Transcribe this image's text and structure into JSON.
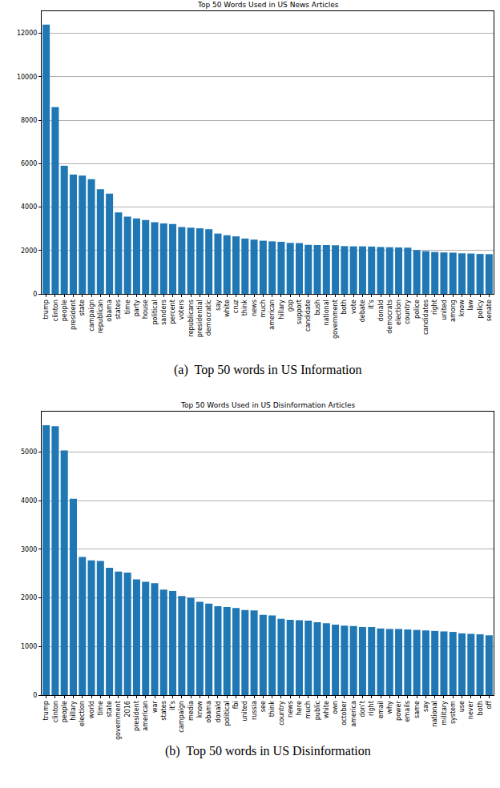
{
  "chart_data": [
    {
      "type": "bar",
      "title": "Top 50 Words Used in US News Articles",
      "caption": "(a)  Top 50 words in US Information",
      "categories": [
        "trump",
        "clinton",
        "people",
        "president",
        "state",
        "campaign",
        "republican",
        "obama",
        "states",
        "time",
        "party",
        "house",
        "political",
        "sanders",
        "percent",
        "voters",
        "republicans",
        "presidential",
        "democratic",
        "say",
        "white",
        "cruz",
        "think",
        "news",
        "much",
        "american",
        "hillary",
        "gop",
        "support",
        "candidate",
        "bush",
        "national",
        "government",
        "both",
        "vote",
        "debate",
        "it's",
        "donald",
        "democrats",
        "election",
        "country",
        "police",
        "candidates",
        "right",
        "united",
        "among",
        "know",
        "law",
        "policy",
        "senate"
      ],
      "values": [
        12400,
        8600,
        5900,
        5500,
        5450,
        5280,
        4820,
        4620,
        3750,
        3560,
        3480,
        3400,
        3300,
        3250,
        3220,
        3080,
        3050,
        3020,
        2980,
        2780,
        2700,
        2650,
        2550,
        2500,
        2450,
        2420,
        2400,
        2350,
        2340,
        2260,
        2250,
        2250,
        2240,
        2200,
        2190,
        2190,
        2180,
        2160,
        2150,
        2140,
        2130,
        2020,
        1970,
        1930,
        1910,
        1900,
        1870,
        1860,
        1840,
        1830
      ],
      "color": "#1f77b4",
      "ylim": [
        0,
        13020
      ],
      "yticks": [
        0,
        2000,
        4000,
        6000,
        8000,
        10000,
        12000
      ],
      "grid": true
    },
    {
      "type": "bar",
      "title": "Top 50 Words Used in US Disinformation Articles",
      "caption": "(b)  Top 50 words in US Disinformation",
      "categories": [
        "trump",
        "clinton",
        "people",
        "hillary",
        "election",
        "world",
        "time",
        "state",
        "government",
        "2016",
        "president",
        "american",
        "war",
        "states",
        "it's",
        "campaign",
        "media",
        "know",
        "obama",
        "donald",
        "political",
        "fbi",
        "united",
        "russia",
        "see",
        "think",
        "country",
        "news",
        "here",
        "much",
        "public",
        "white",
        "own",
        "october",
        "america",
        "don't",
        "right",
        "email",
        "why",
        "power",
        "emails",
        "same",
        "say",
        "national",
        "military",
        "system",
        "use",
        "never",
        "both",
        "off"
      ],
      "values": [
        5550,
        5530,
        5030,
        4040,
        2840,
        2770,
        2760,
        2620,
        2540,
        2520,
        2380,
        2330,
        2300,
        2170,
        2140,
        2040,
        2000,
        1920,
        1880,
        1830,
        1810,
        1790,
        1750,
        1740,
        1650,
        1640,
        1570,
        1550,
        1540,
        1530,
        1500,
        1480,
        1450,
        1430,
        1420,
        1400,
        1400,
        1370,
        1360,
        1360,
        1350,
        1340,
        1330,
        1320,
        1310,
        1300,
        1270,
        1260,
        1250,
        1230
      ],
      "color": "#1f77b4",
      "ylim": [
        0,
        5830
      ],
      "yticks": [
        0,
        1000,
        2000,
        3000,
        4000,
        5000
      ],
      "grid": true
    }
  ]
}
